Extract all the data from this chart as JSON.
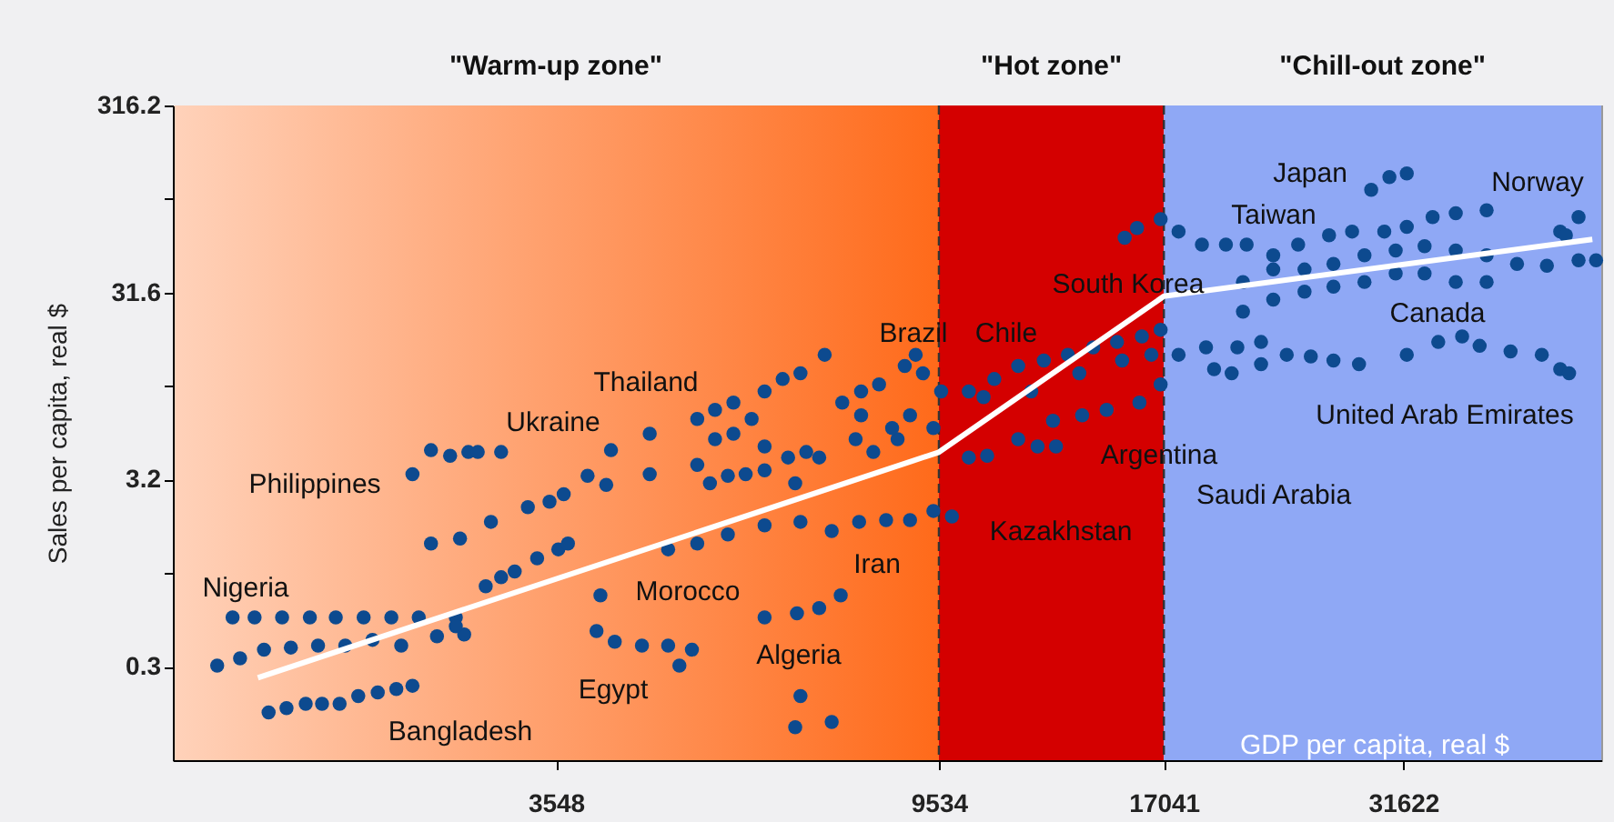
{
  "chart_data": {
    "type": "scatter",
    "xlabel": "GDP per capita, real $",
    "ylabel": "Sales per capita, real $",
    "log": "xy",
    "grid": false,
    "xlim": [
      1320,
      52700
    ],
    "ylim": [
      0.1,
      316.2
    ],
    "xticks": [
      3548,
      9534,
      17041,
      31622
    ],
    "yticks": [
      316.2,
      {
        "value": 100,
        "label": null
      },
      {
        "value": 31.62,
        "label": "31.6"
      },
      {
        "value": 10,
        "label": null
      },
      {
        "value": 3.162,
        "label": "3.2"
      },
      {
        "value": 1,
        "label": null
      },
      {
        "value": 0.3162,
        "label": "0.3"
      }
    ],
    "bands": [
      {
        "axis": "x",
        "from": 1320,
        "to": 9534,
        "label": "\"Warm-up zone\"",
        "color": "#ff6a1a"
      },
      {
        "axis": "x",
        "from": 9534,
        "to": 17041,
        "label": "\"Hot zone\"",
        "color": "#d40000"
      },
      {
        "axis": "x",
        "from": 17041,
        "to": 52700,
        "label": "\"Chill-out zone\"",
        "color": "#8fa8f5"
      }
    ],
    "ref_lines": [
      {
        "axis": "x",
        "value": 9534,
        "line_style": "dashed",
        "color": "#333333"
      },
      {
        "axis": "x",
        "value": 17041,
        "line_style": "dashed",
        "color": "#333333"
      }
    ],
    "series": [
      {
        "type": "scatter",
        "color": "#0d4a8f",
        "marker": "circle",
        "x": [
          1540,
          1630,
          1750,
          1880,
          2010,
          2160,
          2320,
          2490,
          2740,
          1480,
          1570,
          1670,
          1790,
          1920,
          2060,
          2210,
          2380,
          2610,
          2800,
          2740,
          2960,
          3080,
          3190,
          3380,
          3570,
          3660,
          2570,
          2770,
          3000,
          3300,
          3490,
          3620,
          2450,
          2570,
          2700,
          2830,
          2900,
          3080,
          3850,
          4040,
          4090,
          4520,
          4520,
          1690,
          1770,
          1860,
          1940,
          2030,
          2130,
          2240,
          2350,
          2450,
          3980,
          3940,
          4130,
          4430,
          4740,
          5040,
          4880,
          6080,
          6610,
          7000,
          7400,
          6670,
          6580,
          7230,
          4740,
          5110,
          5530,
          6080,
          6670,
          7230,
          7760,
          8320,
          8850,
          9400,
          9860,
          5110,
          5350,
          5610,
          5350,
          5610,
          5880,
          5110,
          5280,
          5530,
          5790,
          6080,
          6080,
          6080,
          6370,
          6670,
          7100,
          6460,
          6770,
          7000,
          6580,
          7430,
          7800,
          8170,
          8730,
          9150,
          9590,
          7690,
          8050,
          8570,
          8850,
          9400,
          8980,
          8450,
          7800,
          10300,
          11000,
          11700,
          12500,
          13300,
          14200,
          15100,
          16100,
          16900,
          10700,
          12100,
          13700,
          15300,
          16500,
          11700,
          12300,
          12900,
          12800,
          13800,
          14700,
          16000,
          16900,
          10300,
          10800,
          15400,
          15900,
          16900,
          17700,
          18800,
          20000,
          21100,
          22600,
          24100,
          26100,
          27700,
          30100,
          31900,
          34100,
          36200,
          39200,
          47400,
          49700,
          48100,
          29100,
          30500,
          31900,
          20900,
          22600,
          24500,
          26400,
          28600,
          31000,
          33400,
          36200,
          39200,
          42400,
          45800,
          49700,
          52000,
          20900,
          22600,
          24500,
          26400,
          28600,
          31000,
          33400,
          36200,
          39200,
          17700,
          19000,
          20600,
          21900,
          23400,
          24900,
          26400,
          28200,
          19400,
          20300,
          21900,
          31900,
          34600,
          36800,
          38500,
          41700,
          45200,
          47400,
          48500
        ],
        "values": [
          0.58,
          0.58,
          0.58,
          0.58,
          0.58,
          0.58,
          0.58,
          0.58,
          0.58,
          0.32,
          0.35,
          0.39,
          0.4,
          0.41,
          0.41,
          0.44,
          0.41,
          0.46,
          0.47,
          0.52,
          0.85,
          0.95,
          1.02,
          1.2,
          1.34,
          1.44,
          1.44,
          1.53,
          1.88,
          2.25,
          2.41,
          2.64,
          3.38,
          4.54,
          4.24,
          4.44,
          4.44,
          4.44,
          3.31,
          2.96,
          4.54,
          5.56,
          3.38,
          0.18,
          0.19,
          0.2,
          0.2,
          0.2,
          0.22,
          0.23,
          0.24,
          0.25,
          0.76,
          0.49,
          0.43,
          0.41,
          0.41,
          0.39,
          0.32,
          0.58,
          0.61,
          0.65,
          0.76,
          0.22,
          0.15,
          0.16,
          1.34,
          1.44,
          1.61,
          1.8,
          1.88,
          1.68,
          1.88,
          1.92,
          1.92,
          2.15,
          2.01,
          6.67,
          7.46,
          8.16,
          5.2,
          5.56,
          6.67,
          3.79,
          3.02,
          3.31,
          3.38,
          3.54,
          4.75,
          9.35,
          10.9,
          11.7,
          14.7,
          4.15,
          4.44,
          4.15,
          3.02,
          8.16,
          9.35,
          10.2,
          12.8,
          11.7,
          9.35,
          5.2,
          4.44,
          5.2,
          6.97,
          5.96,
          14.7,
          5.96,
          6.97,
          9.35,
          10.9,
          12.8,
          13.7,
          14.7,
          16.1,
          17.2,
          18.4,
          20,
          8.73,
          9.35,
          11.7,
          13.7,
          14.7,
          5.2,
          4.75,
          4.75,
          6.52,
          6.97,
          7.46,
          8.16,
          10.2,
          4.15,
          4.24,
          62,
          70,
          78,
          67,
          57,
          57,
          57,
          50,
          57,
          64,
          67,
          67,
          71,
          80,
          84,
          87,
          67,
          80,
          64,
          112,
          131,
          137,
          36,
          42,
          42,
          45,
          50,
          53,
          56,
          53,
          50,
          45,
          44,
          47,
          47,
          25,
          29,
          32,
          34,
          36,
          40,
          40,
          36,
          36,
          14.7,
          16.1,
          16.1,
          17.2,
          14.7,
          14.4,
          13.7,
          13.1,
          12.3,
          11.7,
          13.1,
          14.7,
          17.2,
          18.4,
          16.4,
          15.3,
          14.7,
          12.3,
          11.7
        ]
      },
      {
        "type": "line",
        "color": "#ffffff",
        "marker": "none",
        "x": [
          1644,
          9534,
          17041,
          51500
        ],
        "values": [
          0.276,
          4.43,
          30.2,
          60.8
        ]
      }
    ],
    "annotations": [
      "Nigeria",
      "Bangladesh",
      "Philippines",
      "Ukraine",
      "Thailand",
      "Egypt",
      "Morocco",
      "Algeria",
      "Iran",
      "Brazil",
      "Chile",
      "South Korea",
      "Kazakhstan",
      "Argentina",
      "Saudi Arabia",
      "Japan",
      "Taiwan",
      "Norway",
      "Canada",
      "United Arab Emirates"
    ]
  }
}
